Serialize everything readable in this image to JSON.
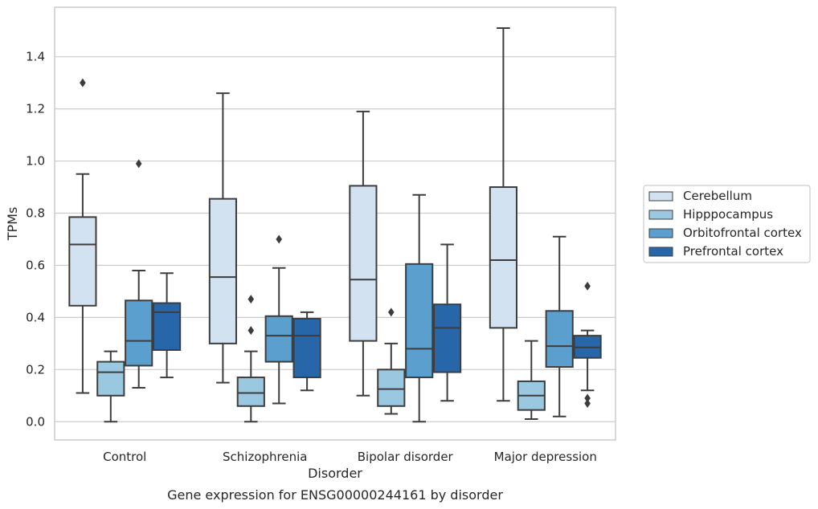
{
  "chart_data": {
    "type": "box",
    "caption": "Gene expression for ENSG00000244161 by disorder",
    "xlabel": "Disorder",
    "ylabel": "TPMs",
    "ylim": [
      -0.07,
      1.59
    ],
    "yticks": [
      0.0,
      0.2,
      0.4,
      0.6,
      0.8,
      1.0,
      1.2,
      1.4
    ],
    "ytick_labels": [
      "0.0",
      "0.2",
      "0.4",
      "0.6",
      "0.8",
      "1.0",
      "1.2",
      "1.4"
    ],
    "grid": "horizontal",
    "legend_position": "right",
    "categories": [
      "Control",
      "Schizophrenia",
      "Bipolar disorder",
      "Major depression"
    ],
    "series": [
      {
        "name": "Cerebellum",
        "color": "#d2e2f1",
        "boxes": [
          {
            "whislo": 0.11,
            "q1": 0.445,
            "med": 0.68,
            "q3": 0.785,
            "whishi": 0.95,
            "fliers": [
              1.3
            ]
          },
          {
            "whislo": 0.15,
            "q1": 0.3,
            "med": 0.555,
            "q3": 0.855,
            "whishi": 1.26,
            "fliers": []
          },
          {
            "whislo": 0.1,
            "q1": 0.31,
            "med": 0.545,
            "q3": 0.905,
            "whishi": 1.19,
            "fliers": []
          },
          {
            "whislo": 0.08,
            "q1": 0.36,
            "med": 0.62,
            "q3": 0.9,
            "whishi": 1.51,
            "fliers": []
          }
        ]
      },
      {
        "name": "Hipppocampus",
        "color": "#9ac8e0",
        "boxes": [
          {
            "whislo": 0.0,
            "q1": 0.1,
            "med": 0.19,
            "q3": 0.23,
            "whishi": 0.27,
            "fliers": []
          },
          {
            "whislo": 0.0,
            "q1": 0.06,
            "med": 0.11,
            "q3": 0.17,
            "whishi": 0.27,
            "fliers": [
              0.35,
              0.47
            ]
          },
          {
            "whislo": 0.03,
            "q1": 0.06,
            "med": 0.125,
            "q3": 0.2,
            "whishi": 0.3,
            "fliers": [
              0.42
            ]
          },
          {
            "whislo": 0.01,
            "q1": 0.045,
            "med": 0.1,
            "q3": 0.155,
            "whishi": 0.31,
            "fliers": []
          }
        ]
      },
      {
        "name": "Orbitofrontal cortex",
        "color": "#5a9fcd",
        "boxes": [
          {
            "whislo": 0.13,
            "q1": 0.215,
            "med": 0.31,
            "q3": 0.465,
            "whishi": 0.58,
            "fliers": [
              0.99
            ]
          },
          {
            "whislo": 0.07,
            "q1": 0.23,
            "med": 0.33,
            "q3": 0.405,
            "whishi": 0.59,
            "fliers": [
              0.7
            ]
          },
          {
            "whislo": 0.0,
            "q1": 0.17,
            "med": 0.28,
            "q3": 0.605,
            "whishi": 0.87,
            "fliers": []
          },
          {
            "whislo": 0.02,
            "q1": 0.21,
            "med": 0.29,
            "q3": 0.425,
            "whishi": 0.71,
            "fliers": []
          }
        ]
      },
      {
        "name": "Prefrontal cortex",
        "color": "#2767a9",
        "boxes": [
          {
            "whislo": 0.17,
            "q1": 0.275,
            "med": 0.42,
            "q3": 0.455,
            "whishi": 0.57,
            "fliers": []
          },
          {
            "whislo": 0.12,
            "q1": 0.17,
            "med": 0.33,
            "q3": 0.395,
            "whishi": 0.42,
            "fliers": []
          },
          {
            "whislo": 0.08,
            "q1": 0.19,
            "med": 0.36,
            "q3": 0.45,
            "whishi": 0.68,
            "fliers": []
          },
          {
            "whislo": 0.12,
            "q1": 0.245,
            "med": 0.285,
            "q3": 0.33,
            "whishi": 0.35,
            "fliers": [
              0.07,
              0.09,
              0.52
            ]
          }
        ]
      }
    ]
  }
}
